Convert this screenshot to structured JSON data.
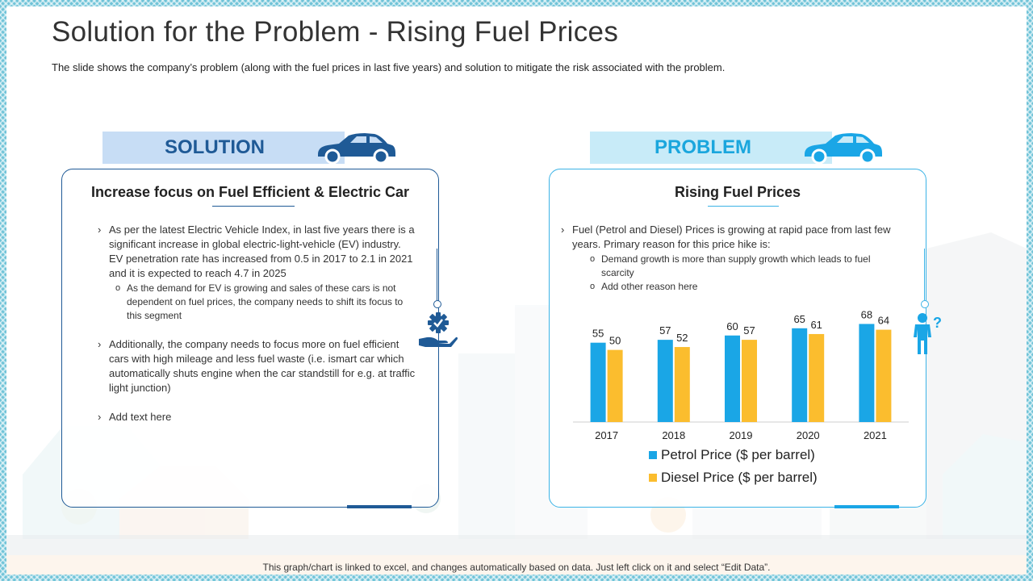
{
  "title": "Solution for the Problem - Rising Fuel Prices",
  "subtitle": "The slide shows the company’s problem (along with the fuel prices in last five years) and solution to mitigate the risk associated with the problem.",
  "colors": {
    "solution_blue": "#1f5a96",
    "problem_blue": "#1aa6dd",
    "petrol": "#1aa6e6",
    "diesel": "#fbbd2e"
  },
  "solution": {
    "tab_label": "SOLUTION",
    "card_title": "Increase focus on Fuel Efficient & Electric Car",
    "bullet1": "As per the latest Electric Vehicle Index, in last five years there is a significant increase in global electric-light-vehicle (EV) industry. EV penetration rate has increased from 0.5 in 2017 to 2.1 in 2021 and it is expected to reach 4.7 in 2025",
    "bullet1_sub": "As the demand for EV is growing and sales of these cars is not dependent on fuel prices, the company needs to shift its focus to this segment",
    "bullet2": "Additionally, the company needs to focus more on fuel efficient cars with high mileage and less fuel waste (i.e. ismart car which automatically shuts engine when the car standstill for e.g. at traffic light junction)",
    "bullet3": "Add text here"
  },
  "problem": {
    "tab_label": "PROBLEM",
    "card_title": "Rising Fuel Prices",
    "bullet1": "Fuel (Petrol and Diesel) Prices is growing at rapid pace from last few years. Primary reason for this price hike is:",
    "sub1": "Demand growth is more than supply growth which leads to     fuel scarcity",
    "sub2": "Add other reason here"
  },
  "chart_data": {
    "type": "bar",
    "categories": [
      "2017",
      "2018",
      "2019",
      "2020",
      "2021"
    ],
    "series": [
      {
        "name": "Petrol Price ($ per barrel)",
        "values": [
          55,
          57,
          60,
          65,
          68
        ]
      },
      {
        "name": "Diesel Price ($ per barrel)",
        "values": [
          50,
          52,
          57,
          61,
          64
        ]
      }
    ],
    "title": "",
    "xlabel": "",
    "ylabel": "",
    "ylim": [
      0,
      80
    ],
    "legend": "bottom"
  },
  "footer": "This graph/chart is linked to excel, and changes automatically based on data. Just left click on it and select “Edit Data”."
}
